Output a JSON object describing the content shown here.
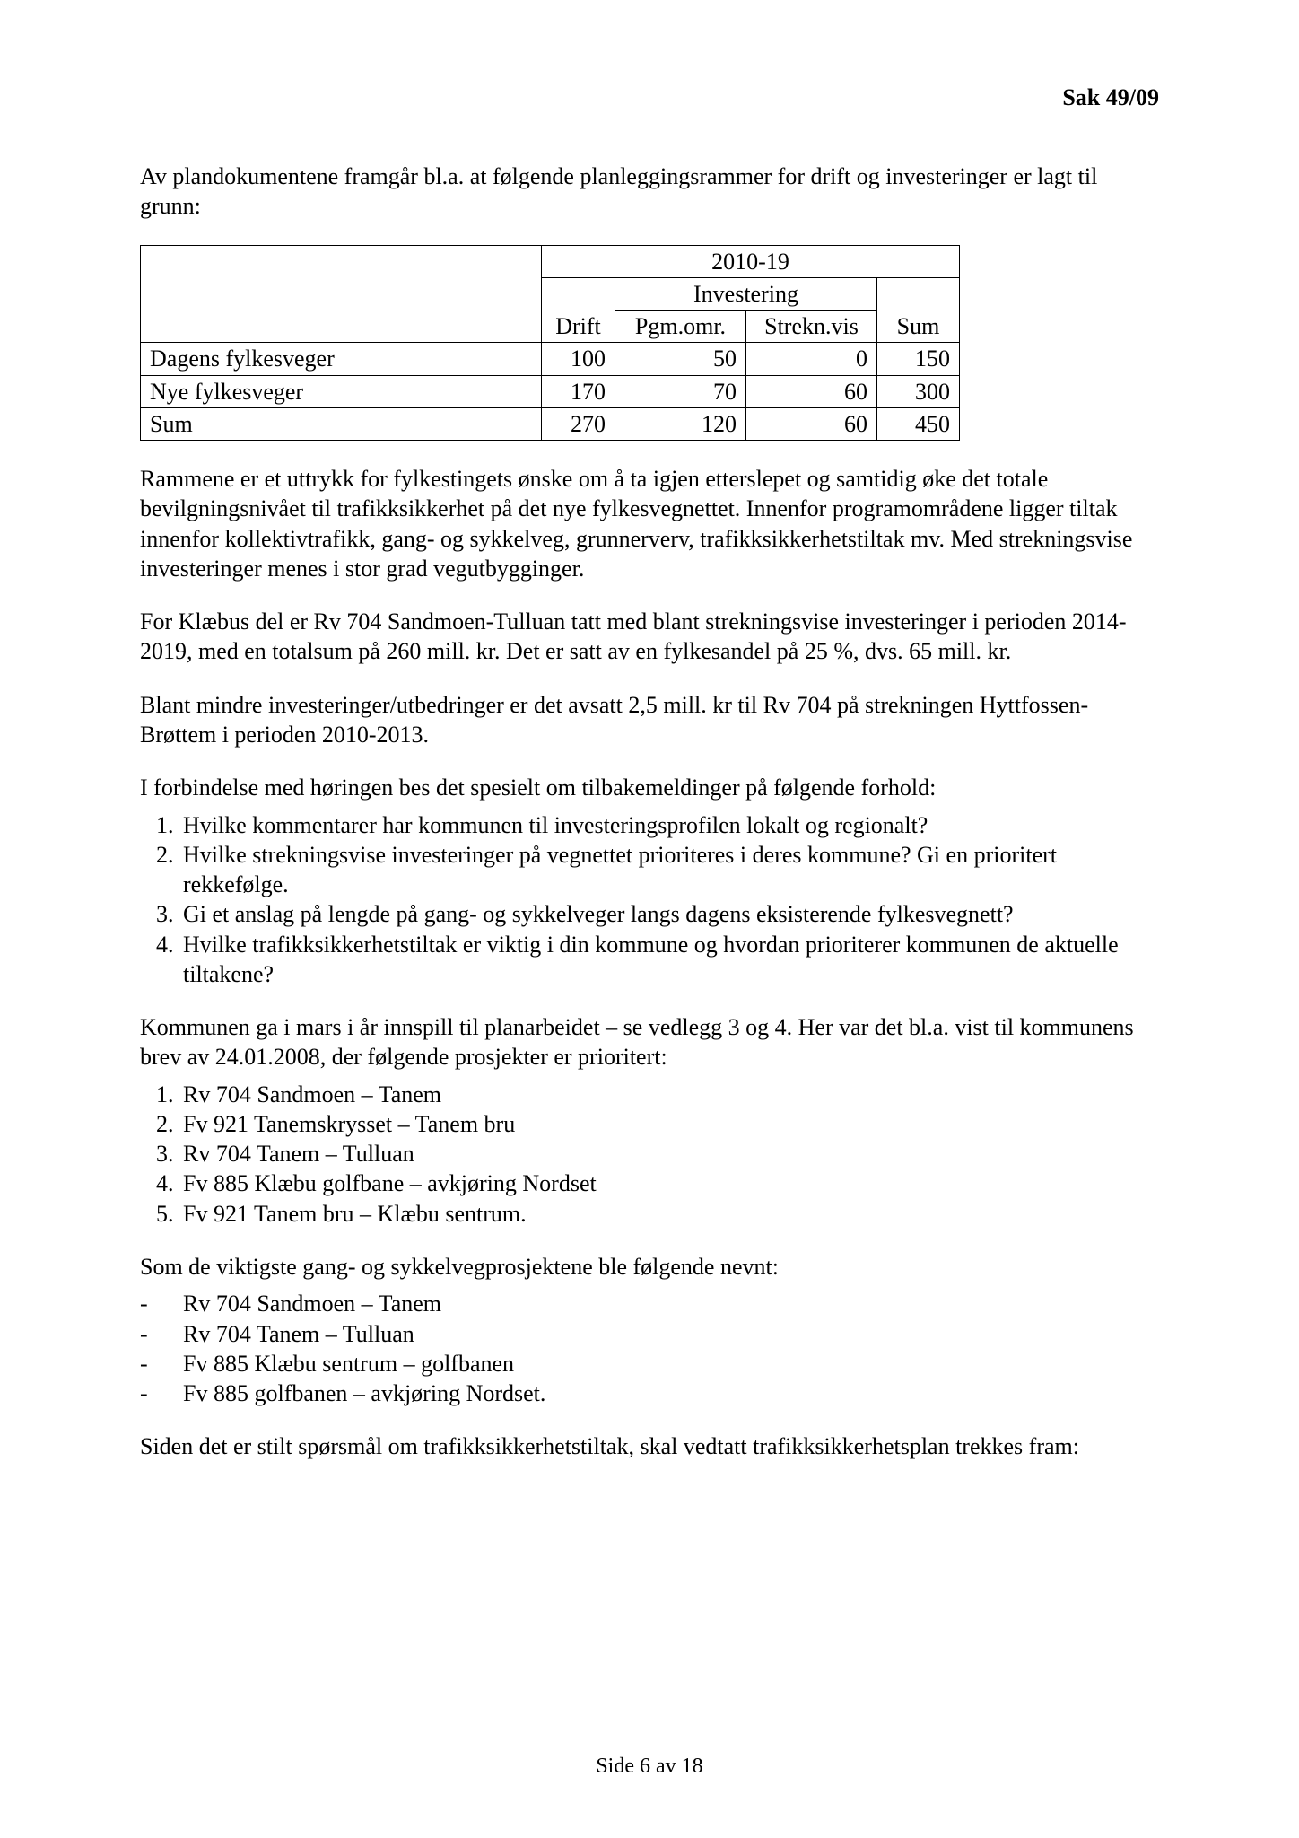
{
  "header": {
    "case_no": "Sak 49/09"
  },
  "intro": "Av plandokumentene framgår bl.a. at følgende planleggingsrammer for drift og investeringer er lagt til grunn:",
  "table": {
    "period": "2010-19",
    "col_drift": "Drift",
    "col_investering": "Investering",
    "col_pgm": "Pgm.omr.",
    "col_strekn": "Strekn.vis",
    "col_sum": "Sum",
    "row1_label": "Dagens fylkesveger",
    "row2_label": "Nye fylkesveger",
    "row3_label": "Sum",
    "r1c1": "100",
    "r1c2": "50",
    "r1c3": "0",
    "r1c4": "150",
    "r2c1": "170",
    "r2c2": "70",
    "r2c3": "60",
    "r2c4": "300",
    "r3c1": "270",
    "r3c2": "120",
    "r3c3": "60",
    "r3c4": "450",
    "border_color": "#000000"
  },
  "para2": "Rammene er et uttrykk for fylkestingets ønske om å ta igjen etterslepet og samtidig øke det totale bevilgningsnivået til trafikksikkerhet på det nye fylkesvegnettet. Innenfor programområdene ligger tiltak innenfor kollektivtrafikk, gang- og sykkelveg, grunnerverv, trafikksikkerhetstiltak mv. Med strekningsvise investeringer menes i stor grad vegutbygginger.",
  "para3": "For Klæbus del er Rv 704 Sandmoen-Tulluan tatt med blant strekningsvise investeringer i perioden 2014-2019, med en totalsum på 260 mill. kr. Det er satt av en fylkesandel på 25 %, dvs. 65 mill. kr.",
  "para4": "Blant mindre investeringer/utbedringer er det avsatt 2,5 mill. kr til Rv 704 på strekningen Hyttfossen-Brøttem i perioden 2010-2013.",
  "para5": "I forbindelse med høringen bes det spesielt om tilbakemeldinger på følgende forhold:",
  "questions": {
    "q1": "Hvilke kommentarer har kommunen til investeringsprofilen lokalt og regionalt?",
    "q2": "Hvilke strekningsvise investeringer på vegnettet prioriteres i deres kommune? Gi en prioritert rekkefølge.",
    "q3": "Gi et anslag på lengde på gang- og sykkelveger langs dagens eksisterende fylkesvegnett?",
    "q4": "Hvilke trafikksikkerhetstiltak er viktig i din kommune og hvordan prioriterer kommunen de aktuelle tiltakene?"
  },
  "para6": "Kommunen ga i mars i år innspill til planarbeidet – se vedlegg 3 og 4. Her var det bl.a. vist til kommunens brev av 24.01.2008, der følgende prosjekter er prioritert:",
  "projects": {
    "p1": "Rv 704 Sandmoen – Tanem",
    "p2": "Fv 921 Tanemskrysset – Tanem bru",
    "p3": "Rv 704 Tanem – Tulluan",
    "p4": "Fv 885 Klæbu golfbane – avkjøring Nordset",
    "p5": "Fv 921 Tanem bru – Klæbu sentrum."
  },
  "para7": "Som de viktigste gang- og sykkelvegprosjektene ble følgende nevnt:",
  "gs_projects": {
    "g1": "Rv 704 Sandmoen – Tanem",
    "g2": "Rv 704 Tanem – Tulluan",
    "g3": "Fv 885 Klæbu sentrum – golfbanen",
    "g4": "Fv 885 golfbanen – avkjøring Nordset."
  },
  "para8": "Siden det er stilt spørsmål om trafikksikkerhetstiltak, skal vedtatt trafikksikkerhetsplan trekkes fram:",
  "footer": "Side 6 av 18"
}
